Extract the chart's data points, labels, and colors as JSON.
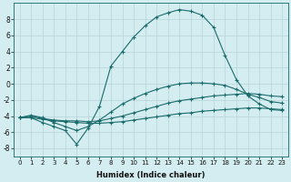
{
  "xlabel": "Humidex (Indice chaleur)",
  "xlim": [
    -0.5,
    23.5
  ],
  "ylim": [
    -9,
    10
  ],
  "yticks": [
    -8,
    -6,
    -4,
    -2,
    0,
    2,
    4,
    6,
    8
  ],
  "xticks": [
    0,
    1,
    2,
    3,
    4,
    5,
    6,
    7,
    8,
    9,
    10,
    11,
    12,
    13,
    14,
    15,
    16,
    17,
    18,
    19,
    20,
    21,
    22,
    23
  ],
  "bg_color": "#d4edf0",
  "grid_color": "#b8d4d8",
  "line_color": "#1a6b6b",
  "series": [
    {
      "x": [
        0,
        1,
        2,
        3,
        4,
        5,
        6,
        7,
        8,
        9,
        10,
        11,
        12,
        13,
        14,
        15,
        16,
        17,
        18,
        19,
        20,
        21,
        22,
        23
      ],
      "y": [
        -4.2,
        -4.2,
        -4.4,
        -4.6,
        -4.7,
        -4.8,
        -4.9,
        -4.9,
        -4.8,
        -4.7,
        -4.5,
        -4.3,
        -4.1,
        -3.9,
        -3.7,
        -3.6,
        -3.4,
        -3.3,
        -3.2,
        -3.1,
        -3.0,
        -3.0,
        -3.1,
        -3.2
      ]
    },
    {
      "x": [
        0,
        1,
        2,
        3,
        4,
        5,
        6,
        7,
        8,
        9,
        10,
        11,
        12,
        13,
        14,
        15,
        16,
        17,
        18,
        19,
        20,
        21,
        22,
        23
      ],
      "y": [
        -4.2,
        -4.0,
        -4.3,
        -4.5,
        -4.6,
        -4.6,
        -4.7,
        -4.6,
        -4.3,
        -4.0,
        -3.6,
        -3.2,
        -2.8,
        -2.4,
        -2.1,
        -1.9,
        -1.7,
        -1.5,
        -1.4,
        -1.3,
        -1.2,
        -1.3,
        -1.5,
        -1.6
      ]
    },
    {
      "x": [
        0,
        1,
        2,
        3,
        4,
        5,
        6,
        7,
        8,
        9,
        10,
        11,
        12,
        13,
        14,
        15,
        16,
        17,
        18,
        19,
        20,
        21,
        22,
        23
      ],
      "y": [
        -4.2,
        -3.9,
        -4.2,
        -4.8,
        -5.3,
        -5.8,
        -5.3,
        -4.5,
        -3.5,
        -2.5,
        -1.8,
        -1.2,
        -0.7,
        -0.3,
        0.0,
        0.1,
        0.1,
        0.0,
        -0.2,
        -0.7,
        -1.3,
        -1.7,
        -2.2,
        -2.4
      ]
    },
    {
      "x": [
        0,
        1,
        2,
        3,
        4,
        5,
        6,
        7,
        8,
        9,
        10,
        11,
        12,
        13,
        14,
        15,
        16,
        17,
        18,
        19,
        20,
        21,
        22,
        23
      ],
      "y": [
        -4.2,
        -4.2,
        -4.8,
        -5.3,
        -5.8,
        -7.5,
        -5.5,
        -2.8,
        2.2,
        4.0,
        5.8,
        7.2,
        8.3,
        8.8,
        9.2,
        9.0,
        8.5,
        7.0,
        3.5,
        0.5,
        -1.5,
        -2.5,
        -3.2,
        -3.3
      ]
    }
  ]
}
